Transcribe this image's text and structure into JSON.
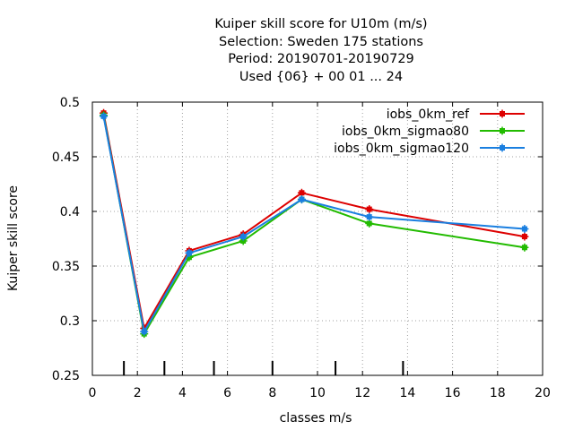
{
  "chart_data": {
    "type": "line",
    "title_lines": [
      "Kuiper skill score  for U10m (m/s)",
      "Selection: Sweden    175 stations",
      "Period: 20190701-20190729",
      "Used {06} + 00 01 ... 24"
    ],
    "xlabel": "classes m/s",
    "ylabel": "Kuiper skill score",
    "xlim": [
      0,
      20
    ],
    "ylim": [
      0.25,
      0.5
    ],
    "xticks": [
      0,
      2,
      4,
      6,
      8,
      10,
      12,
      14,
      16,
      18,
      20
    ],
    "yticks": [
      0.25,
      0.3,
      0.35,
      0.4,
      0.45,
      0.5
    ],
    "ytick_labels": [
      "0.25",
      "0.3",
      "0.35",
      "0.4",
      "0.45",
      "0.5"
    ],
    "grid": true,
    "grid_style": "dotted",
    "legend_position": "top-right",
    "class_boundaries": [
      1.4,
      3.2,
      5.4,
      8.0,
      10.8,
      13.8
    ],
    "series": [
      {
        "name": "iobs_0km_ref",
        "color": "#dd0000",
        "x": [
          0.5,
          2.3,
          4.3,
          6.7,
          9.3,
          12.3,
          19.2
        ],
        "y": [
          0.49,
          0.293,
          0.364,
          0.379,
          0.417,
          0.402,
          0.377
        ]
      },
      {
        "name": "iobs_0km_sigmao80",
        "color": "#22bb00",
        "x": [
          0.5,
          2.3,
          4.3,
          6.7,
          9.3,
          12.3,
          19.2
        ],
        "y": [
          0.488,
          0.288,
          0.358,
          0.373,
          0.411,
          0.389,
          0.367
        ]
      },
      {
        "name": "iobs_0km_sigmao120",
        "color": "#1a7fe0",
        "x": [
          0.5,
          2.3,
          4.3,
          6.7,
          9.3,
          12.3,
          19.2
        ],
        "y": [
          0.487,
          0.29,
          0.362,
          0.377,
          0.411,
          0.395,
          0.384
        ]
      }
    ]
  }
}
